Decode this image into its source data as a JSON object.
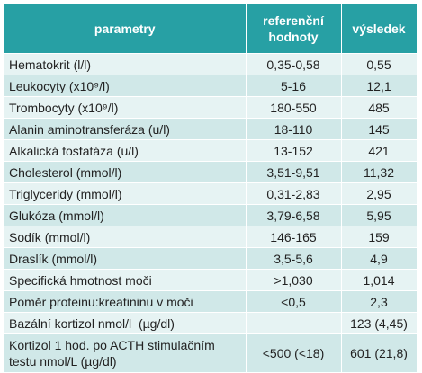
{
  "header": {
    "col1": "parametry",
    "col2_line1": "referenční",
    "col2_line2": "hodnoty",
    "col3": "výsledek"
  },
  "rows": [
    {
      "name": "Hematokrit (l/l)",
      "ref": "0,35-0,58",
      "result": "0,55"
    },
    {
      "name": "Leukocyty (x10⁹/l)",
      "ref": "5-16",
      "result": "12,1"
    },
    {
      "name": "Trombocyty (x10⁹/l)",
      "ref": "180-550",
      "result": "485"
    },
    {
      "name": "Alanin aminotransferáza (u/l)",
      "ref": "18-110",
      "result": "145"
    },
    {
      "name": "Alkalická fosfatáza (u/l)",
      "ref": "13-152",
      "result": "421"
    },
    {
      "name": "Cholesterol (mmol/l)",
      "ref": "3,51-9,51",
      "result": "11,32"
    },
    {
      "name": "Triglyceridy (mmol/l)",
      "ref": "0,31-2,83",
      "result": "2,95"
    },
    {
      "name": "Glukóza (mmol/l)",
      "ref": "3,79-6,58",
      "result": "5,95"
    },
    {
      "name": "Sodík (mmol/l)",
      "ref": "146-165",
      "result": "159"
    },
    {
      "name": "Draslík (mmol/l)",
      "ref": "3,5-5,6",
      "result": "4,9"
    },
    {
      "name": "Specifická hmotnost moči",
      "ref": ">1,030",
      "result": "1,014"
    },
    {
      "name": "Poměr proteinu:kreatininu v moči",
      "ref": "<0,5",
      "result": "2,3"
    },
    {
      "name": "Bazální kortizol nmol/l  (µg/dl)",
      "ref": "",
      "result": "123 (4,45)"
    },
    {
      "name_line1": "Kortizol 1 hod. po ACTH stimulačním",
      "name_line2": "testu nmol/L (µg/dl)",
      "ref": "<500 (<18)",
      "result": "601 (21,8)"
    }
  ],
  "colors": {
    "header_bg": "#27a0a4",
    "row_light": "#e6f3f3",
    "row_dark": "#d0e8e8"
  }
}
